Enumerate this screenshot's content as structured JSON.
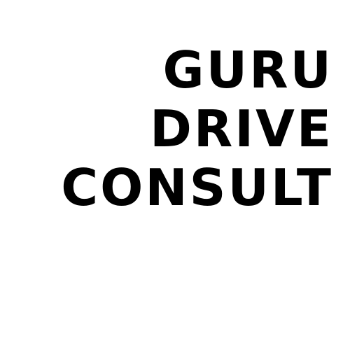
{
  "logo": {
    "lines": [
      "GURU",
      "DRIVE",
      "CONSULT"
    ],
    "text_color": "#000000",
    "background_color": "#ffffff"
  }
}
